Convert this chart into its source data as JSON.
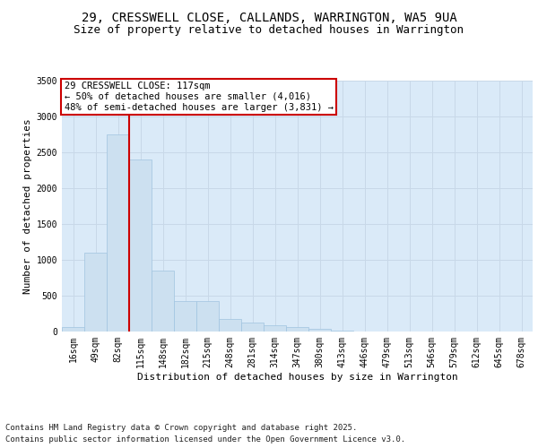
{
  "title_line1": "29, CRESSWELL CLOSE, CALLANDS, WARRINGTON, WA5 9UA",
  "title_line2": "Size of property relative to detached houses in Warrington",
  "xlabel": "Distribution of detached houses by size in Warrington",
  "ylabel": "Number of detached properties",
  "categories": [
    "16sqm",
    "49sqm",
    "82sqm",
    "115sqm",
    "148sqm",
    "182sqm",
    "215sqm",
    "248sqm",
    "281sqm",
    "314sqm",
    "347sqm",
    "380sqm",
    "413sqm",
    "446sqm",
    "479sqm",
    "513sqm",
    "546sqm",
    "579sqm",
    "612sqm",
    "645sqm",
    "678sqm"
  ],
  "values": [
    60,
    1100,
    2750,
    2400,
    850,
    420,
    420,
    170,
    120,
    85,
    65,
    40,
    15,
    5,
    2,
    1,
    1,
    1,
    0,
    0,
    0
  ],
  "bar_color": "#cce0f0",
  "bar_edge_color": "#a0c4e0",
  "grid_color": "#c8d8e8",
  "background_color": "#daeaf8",
  "vline_color": "#cc0000",
  "vline_x": 2.5,
  "annotation_text": "29 CRESSWELL CLOSE: 117sqm\n← 50% of detached houses are smaller (4,016)\n48% of semi-detached houses are larger (3,831) →",
  "annotation_box_color": "#ffffff",
  "annotation_border_color": "#cc0000",
  "ylim": [
    0,
    3500
  ],
  "yticks": [
    0,
    500,
    1000,
    1500,
    2000,
    2500,
    3000,
    3500
  ],
  "footer_line1": "Contains HM Land Registry data © Crown copyright and database right 2025.",
  "footer_line2": "Contains public sector information licensed under the Open Government Licence v3.0.",
  "title_fontsize": 10,
  "subtitle_fontsize": 9,
  "axis_label_fontsize": 8,
  "tick_fontsize": 7,
  "annotation_fontsize": 7.5,
  "footer_fontsize": 6.5
}
